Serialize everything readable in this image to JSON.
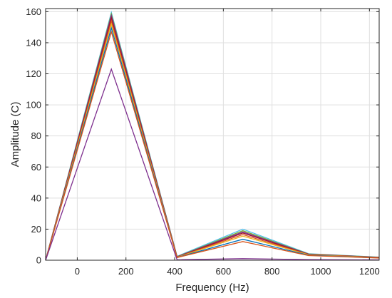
{
  "chart_data": {
    "type": "line",
    "xlabel": "Frequency (Hz)",
    "ylabel": "Amplitude (C)",
    "xlim": [
      -130,
      1240
    ],
    "ylim": [
      0,
      162
    ],
    "x_ticks": [
      0,
      200,
      400,
      600,
      800,
      1000,
      1200
    ],
    "y_ticks": [
      0,
      20,
      40,
      60,
      80,
      100,
      120,
      140,
      160
    ],
    "grid": true,
    "x": [
      -130,
      140,
      410,
      680,
      950,
      1240
    ],
    "series": [
      {
        "color": "#4DBEEE",
        "values": [
          0,
          159.5,
          2.5,
          20,
          4.2,
          2.0
        ]
      },
      {
        "color": "#77AC30",
        "values": [
          0,
          158.5,
          2.3,
          19.0,
          4.0,
          1.9
        ]
      },
      {
        "color": "#7E2F8E",
        "values": [
          0,
          157.5,
          2.2,
          18.2,
          3.9,
          1.8
        ]
      },
      {
        "color": "#A2142F",
        "values": [
          0,
          156,
          2.1,
          17.5,
          3.8,
          1.8
        ]
      },
      {
        "color": "#D95319",
        "values": [
          0,
          154,
          2.0,
          16.5,
          3.6,
          1.7
        ]
      },
      {
        "color": "#EDB120",
        "values": [
          0,
          152,
          1.9,
          15.5,
          3.5,
          1.6
        ]
      },
      {
        "color": "#0072BD",
        "values": [
          0,
          149.5,
          1.8,
          13.5,
          3.2,
          1.5
        ]
      },
      {
        "color": "#D95319",
        "values": [
          0,
          147,
          1.7,
          12.0,
          3.0,
          1.4
        ]
      },
      {
        "color": "#7E2F8E",
        "values": [
          0,
          123,
          0.3,
          1.0,
          0.4,
          0.2
        ]
      }
    ]
  }
}
